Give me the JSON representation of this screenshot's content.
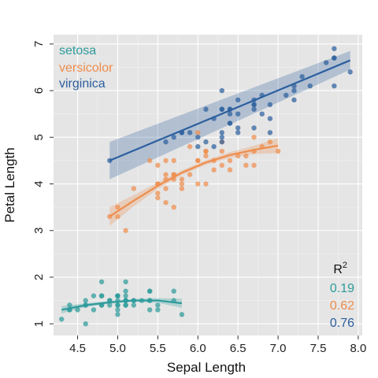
{
  "chart_data": {
    "type": "scatter",
    "xlabel": "Sepal Length",
    "ylabel": "Petal Length",
    "xlim": [
      4.2,
      8.05
    ],
    "ylim": [
      0.75,
      7.2
    ],
    "xticks": [
      "4.5",
      "5.0",
      "5.5",
      "6.0",
      "6.5",
      "7.0",
      "7.5",
      "8.0"
    ],
    "yticks": [
      "1",
      "2",
      "3",
      "4",
      "5",
      "6",
      "7"
    ],
    "grid": true,
    "legend_position": "top-left",
    "r2_title": "R",
    "r2_superscript": "2",
    "series": [
      {
        "name": "setosa",
        "color": "#2e9b9b",
        "r2": "0.19",
        "fit": [
          [
            4.3,
            1.3
          ],
          [
            4.6,
            1.4
          ],
          [
            4.9,
            1.46
          ],
          [
            5.2,
            1.5
          ],
          [
            5.5,
            1.5
          ],
          [
            5.8,
            1.44
          ]
        ],
        "band": [
          0.08,
          0.04,
          0.03,
          0.03,
          0.05,
          0.1
        ],
        "points": [
          [
            5.1,
            1.4
          ],
          [
            4.9,
            1.4
          ],
          [
            4.7,
            1.3
          ],
          [
            4.6,
            1.5
          ],
          [
            5.0,
            1.4
          ],
          [
            5.4,
            1.7
          ],
          [
            4.6,
            1.4
          ],
          [
            5.0,
            1.5
          ],
          [
            4.4,
            1.4
          ],
          [
            4.9,
            1.5
          ],
          [
            5.4,
            1.5
          ],
          [
            4.8,
            1.6
          ],
          [
            4.8,
            1.4
          ],
          [
            4.3,
            1.1
          ],
          [
            5.8,
            1.2
          ],
          [
            5.7,
            1.5
          ],
          [
            5.4,
            1.3
          ],
          [
            5.1,
            1.4
          ],
          [
            5.7,
            1.7
          ],
          [
            5.1,
            1.5
          ],
          [
            5.4,
            1.7
          ],
          [
            5.1,
            1.5
          ],
          [
            4.6,
            1.0
          ],
          [
            5.1,
            1.7
          ],
          [
            4.8,
            1.9
          ],
          [
            5.0,
            1.6
          ],
          [
            5.0,
            1.6
          ],
          [
            5.2,
            1.5
          ],
          [
            5.2,
            1.4
          ],
          [
            4.7,
            1.6
          ],
          [
            4.8,
            1.6
          ],
          [
            5.4,
            1.5
          ],
          [
            5.2,
            1.5
          ],
          [
            5.5,
            1.4
          ],
          [
            4.9,
            1.5
          ],
          [
            5.0,
            1.2
          ],
          [
            5.5,
            1.3
          ],
          [
            4.4,
            1.3
          ],
          [
            5.1,
            1.5
          ],
          [
            5.0,
            1.3
          ],
          [
            4.5,
            1.3
          ],
          [
            4.4,
            1.3
          ],
          [
            5.0,
            1.6
          ],
          [
            5.1,
            1.9
          ],
          [
            4.8,
            1.4
          ],
          [
            5.1,
            1.6
          ],
          [
            4.6,
            1.4
          ],
          [
            5.3,
            1.5
          ],
          [
            5.0,
            1.4
          ]
        ]
      },
      {
        "name": "versicolor",
        "color": "#ee8d4d",
        "r2": "0.62",
        "fit": [
          [
            4.9,
            3.3
          ],
          [
            5.2,
            3.64
          ],
          [
            5.5,
            3.96
          ],
          [
            5.8,
            4.24
          ],
          [
            6.1,
            4.46
          ],
          [
            6.4,
            4.62
          ],
          [
            6.7,
            4.73
          ],
          [
            7.0,
            4.82
          ]
        ],
        "band": [
          0.2,
          0.12,
          0.07,
          0.05,
          0.05,
          0.06,
          0.09,
          0.16
        ],
        "points": [
          [
            7.0,
            4.7
          ],
          [
            6.4,
            4.5
          ],
          [
            6.9,
            4.9
          ],
          [
            5.5,
            4.0
          ],
          [
            6.5,
            4.6
          ],
          [
            5.7,
            4.5
          ],
          [
            6.3,
            4.7
          ],
          [
            4.9,
            3.3
          ],
          [
            6.6,
            4.6
          ],
          [
            5.2,
            3.9
          ],
          [
            5.0,
            3.5
          ],
          [
            5.9,
            4.2
          ],
          [
            6.0,
            4.0
          ],
          [
            6.1,
            4.7
          ],
          [
            5.6,
            3.6
          ],
          [
            6.7,
            4.4
          ],
          [
            5.6,
            4.5
          ],
          [
            5.8,
            4.1
          ],
          [
            6.2,
            4.5
          ],
          [
            5.6,
            3.9
          ],
          [
            5.9,
            4.8
          ],
          [
            6.1,
            4.0
          ],
          [
            6.3,
            4.9
          ],
          [
            6.1,
            4.7
          ],
          [
            6.4,
            4.3
          ],
          [
            6.6,
            4.4
          ],
          [
            6.8,
            4.8
          ],
          [
            6.7,
            5.0
          ],
          [
            6.0,
            4.5
          ],
          [
            5.7,
            3.5
          ],
          [
            5.5,
            3.8
          ],
          [
            5.5,
            3.7
          ],
          [
            5.8,
            3.9
          ],
          [
            6.0,
            5.1
          ],
          [
            5.4,
            4.5
          ],
          [
            6.0,
            4.5
          ],
          [
            6.7,
            4.7
          ],
          [
            6.3,
            4.4
          ],
          [
            5.6,
            4.1
          ],
          [
            5.5,
            4.0
          ],
          [
            5.5,
            4.4
          ],
          [
            6.1,
            4.6
          ],
          [
            5.8,
            4.0
          ],
          [
            5.0,
            3.3
          ],
          [
            5.6,
            4.2
          ],
          [
            5.7,
            4.2
          ],
          [
            5.7,
            4.2
          ],
          [
            6.2,
            4.3
          ],
          [
            5.1,
            3.0
          ],
          [
            5.7,
            4.1
          ]
        ]
      },
      {
        "name": "virginica",
        "color": "#2c5f9e",
        "r2": "0.76",
        "fit": [
          [
            4.9,
            4.5
          ],
          [
            7.9,
            6.65
          ]
        ],
        "band": [
          0.4,
          0.2
        ],
        "points": [
          [
            6.3,
            6.0
          ],
          [
            5.8,
            5.1
          ],
          [
            7.1,
            5.9
          ],
          [
            6.3,
            5.6
          ],
          [
            6.5,
            5.8
          ],
          [
            7.6,
            6.6
          ],
          [
            4.9,
            4.5
          ],
          [
            7.3,
            6.3
          ],
          [
            6.7,
            5.8
          ],
          [
            7.2,
            6.1
          ],
          [
            6.5,
            5.1
          ],
          [
            6.4,
            5.3
          ],
          [
            6.8,
            5.5
          ],
          [
            5.7,
            5.0
          ],
          [
            5.8,
            5.1
          ],
          [
            6.4,
            5.3
          ],
          [
            6.5,
            5.5
          ],
          [
            7.7,
            6.7
          ],
          [
            7.7,
            6.9
          ],
          [
            6.0,
            5.0
          ],
          [
            6.9,
            5.7
          ],
          [
            5.6,
            4.9
          ],
          [
            7.7,
            6.7
          ],
          [
            6.3,
            4.9
          ],
          [
            6.7,
            5.7
          ],
          [
            7.2,
            6.0
          ],
          [
            6.2,
            4.8
          ],
          [
            6.1,
            4.9
          ],
          [
            6.4,
            5.6
          ],
          [
            7.2,
            5.8
          ],
          [
            7.4,
            6.1
          ],
          [
            7.9,
            6.4
          ],
          [
            6.4,
            5.6
          ],
          [
            6.3,
            5.1
          ],
          [
            6.1,
            5.6
          ],
          [
            7.7,
            6.1
          ],
          [
            6.3,
            5.6
          ],
          [
            6.4,
            5.5
          ],
          [
            6.0,
            4.8
          ],
          [
            6.9,
            5.4
          ],
          [
            6.7,
            5.6
          ],
          [
            6.9,
            5.1
          ],
          [
            6.8,
            5.9
          ],
          [
            6.7,
            5.7
          ],
          [
            6.7,
            5.2
          ],
          [
            6.3,
            5.0
          ],
          [
            6.5,
            5.2
          ],
          [
            6.2,
            5.4
          ],
          [
            5.9,
            5.1
          ]
        ]
      }
    ]
  }
}
